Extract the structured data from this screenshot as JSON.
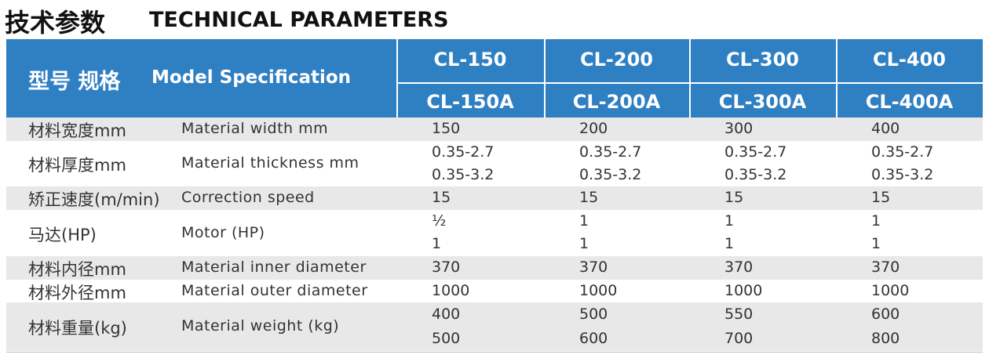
{
  "header": {
    "title_cn": "技术参数",
    "title_en": "TECHNICAL PARAMETERS"
  },
  "table": {
    "header_cn": "型号 规格",
    "header_en": "Model Specification",
    "models": [
      [
        "CL-150",
        "CL-150A"
      ],
      [
        "CL-200",
        "CL-200A"
      ],
      [
        "CL-300",
        "CL-300A"
      ],
      [
        "CL-400",
        "CL-400A"
      ]
    ],
    "rows": [
      {
        "cn": "材料宽度mm",
        "en": "Material width mm",
        "values": [
          [
            "150"
          ],
          [
            "200"
          ],
          [
            "300"
          ],
          [
            "400"
          ]
        ]
      },
      {
        "cn": "材料厚度mm",
        "en": "Material thickness mm",
        "values": [
          [
            "0.35-2.7",
            "0.35-3.2"
          ],
          [
            "0.35-2.7",
            "0.35-3.2"
          ],
          [
            "0.35-2.7",
            "0.35-3.2"
          ],
          [
            "0.35-2.7",
            "0.35-3.2"
          ]
        ]
      },
      {
        "cn": "矫正速度(m/min)",
        "en": "Correction speed",
        "values": [
          [
            "15"
          ],
          [
            "15"
          ],
          [
            "15"
          ],
          [
            "15"
          ]
        ]
      },
      {
        "cn": "马达(HP)",
        "en": "Motor (HP)",
        "values": [
          [
            "½",
            "1"
          ],
          [
            "1",
            "1"
          ],
          [
            "1",
            "1"
          ],
          [
            "1",
            "1"
          ]
        ]
      },
      {
        "cn": "材料内径mm",
        "en": "Material inner diameter",
        "values": [
          [
            "370"
          ],
          [
            "370"
          ],
          [
            "370"
          ],
          [
            "370"
          ]
        ]
      },
      {
        "cn": "材料外径mm",
        "en": "Material outer diameter",
        "values": [
          [
            "1000"
          ],
          [
            "1000"
          ],
          [
            "1000"
          ],
          [
            "1000"
          ]
        ]
      },
      {
        "cn": "材料重量(kg)",
        "en": "Material weight (kg)",
        "values": [
          [
            "400",
            "500"
          ],
          [
            "500",
            "600"
          ],
          [
            "550",
            "700"
          ],
          [
            "600",
            "800"
          ]
        ]
      }
    ]
  }
}
